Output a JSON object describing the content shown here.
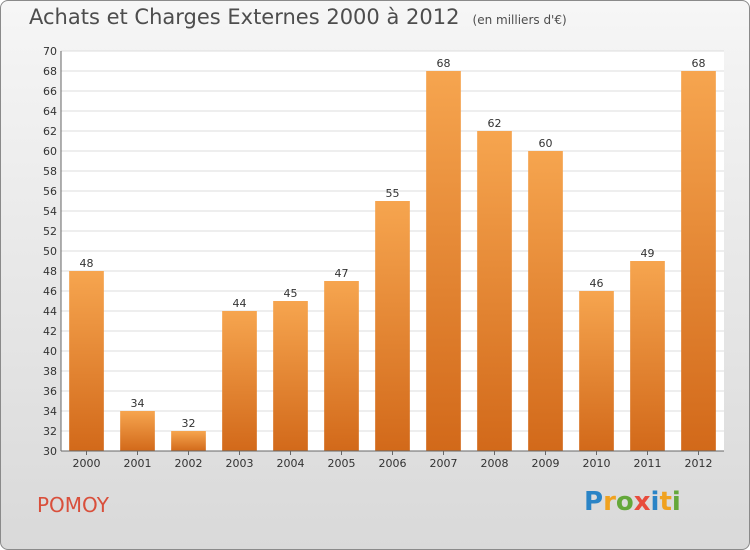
{
  "title": "Achats et Charges Externes 2000 à 2012",
  "subtitle": "(en milliers d'€)",
  "commune": "POMOY",
  "logo": {
    "letters": [
      "P",
      "r",
      "o",
      "x",
      "i",
      "t",
      "i"
    ],
    "colors": [
      "#2a84c6",
      "#f0a21f",
      "#64a83a",
      "#e84c3d",
      "#2a84c6",
      "#f0a21f",
      "#64a83a"
    ]
  },
  "chart_data": {
    "type": "bar",
    "title": "Achats et Charges Externes 2000 à 2012",
    "xlabel": "",
    "ylabel": "",
    "categories": [
      "2000",
      "2001",
      "2002",
      "2003",
      "2004",
      "2005",
      "2006",
      "2007",
      "2008",
      "2009",
      "2010",
      "2011",
      "2012"
    ],
    "values": [
      48,
      34,
      32,
      44,
      45,
      47,
      55,
      68,
      62,
      60,
      46,
      49,
      68
    ],
    "ylim": [
      30,
      70
    ],
    "ytick_step": 2,
    "grid": true,
    "bar_color_top": "#f6a54f",
    "bar_color_bottom": "#d2691a"
  }
}
